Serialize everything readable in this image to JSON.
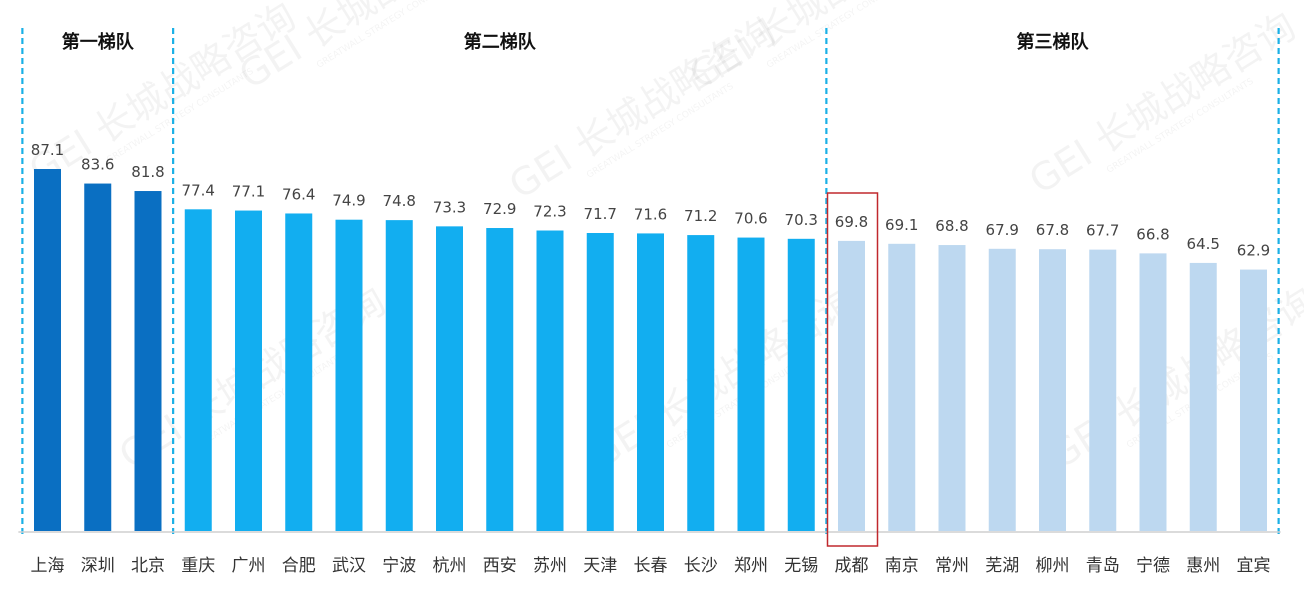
{
  "chart_data": {
    "type": "bar",
    "title": "",
    "xlabel": "",
    "ylabel": "",
    "categories": [
      "上海",
      "深圳",
      "北京",
      "重庆",
      "广州",
      "合肥",
      "武汉",
      "宁波",
      "杭州",
      "西安",
      "苏州",
      "天津",
      "长春",
      "长沙",
      "郑州",
      "无锡",
      "成都",
      "南京",
      "常州",
      "芜湖",
      "柳州",
      "青岛",
      "宁德",
      "惠州",
      "宜宾"
    ],
    "values": [
      87.1,
      83.6,
      81.8,
      77.4,
      77.1,
      76.4,
      74.9,
      74.8,
      73.3,
      72.9,
      72.3,
      71.7,
      71.6,
      71.2,
      70.6,
      70.3,
      69.8,
      69.1,
      68.8,
      67.9,
      67.8,
      67.7,
      66.8,
      64.5,
      62.9
    ],
    "value_labels": [
      "87.1",
      "83.6",
      "81.8",
      "77.4",
      "77.1",
      "76.4",
      "74.9",
      "74.8",
      "73.3",
      "72.9",
      "72.3",
      "71.7",
      "71.6",
      "71.2",
      "70.6",
      "70.3",
      "69.8",
      "69.1",
      "68.8",
      "67.9",
      "67.8",
      "67.7",
      "66.8",
      "64.5",
      "62.9"
    ],
    "tier_of_bar": [
      0,
      0,
      0,
      1,
      1,
      1,
      1,
      1,
      1,
      1,
      1,
      1,
      1,
      1,
      1,
      1,
      2,
      2,
      2,
      2,
      2,
      2,
      2,
      2,
      2
    ],
    "tiers": [
      {
        "label": "第一梯队",
        "color": "#0a6fc2"
      },
      {
        "label": "第二梯队",
        "color": "#12aef0"
      },
      {
        "label": "第三梯队",
        "color": "#bdd8f0"
      }
    ],
    "highlighted_category": "成都",
    "highlight_color": "#c0282d",
    "divider_color": "#1ab0e6",
    "axis_color": "#cfcfcf",
    "ylim": [
      0,
      87.1
    ],
    "grid": false,
    "legend": "none",
    "watermark": {
      "text": "GEI 长城战略咨询",
      "subtext": "GREATWALL STRATEGY CONSULTANTS"
    }
  }
}
